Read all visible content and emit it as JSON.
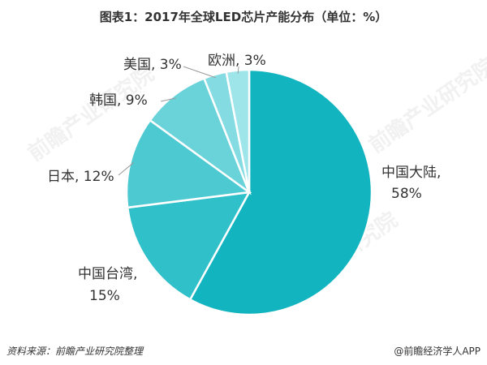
{
  "title": "图表1：2017年全球LED芯片产能分布（单位：%）",
  "chart_data": {
    "type": "pie",
    "title": "图表1：2017年全球LED芯片产能分布（单位：%）",
    "unit": "%",
    "slices": [
      {
        "label": "中国大陆",
        "value": 58,
        "color": "#12b5bf"
      },
      {
        "label": "中国台湾",
        "value": 15,
        "color": "#2fc0c9"
      },
      {
        "label": "日本",
        "value": 12,
        "color": "#4dc9d2"
      },
      {
        "label": "韩国",
        "value": 9,
        "color": "#6ad3da"
      },
      {
        "label": "美国",
        "value": 3,
        "color": "#84dce2"
      },
      {
        "label": "欧洲",
        "value": 3,
        "color": "#9ee5ea"
      }
    ],
    "label_texts": {
      "china_mainland": [
        "中国大陆,",
        "58%"
      ],
      "china_taiwan": [
        "中国台湾,",
        "15%"
      ],
      "japan": "日本, 12%",
      "korea": "韩国, 9%",
      "usa": "美国, 3%",
      "europe": "欧洲, 3%"
    },
    "start": "12 o'clock",
    "direction": "clockwise"
  },
  "footer": {
    "source": "资料来源：前瞻产业研究院整理",
    "brand": "@前瞻经济学人APP"
  },
  "watermark": "前瞻产业研究院"
}
